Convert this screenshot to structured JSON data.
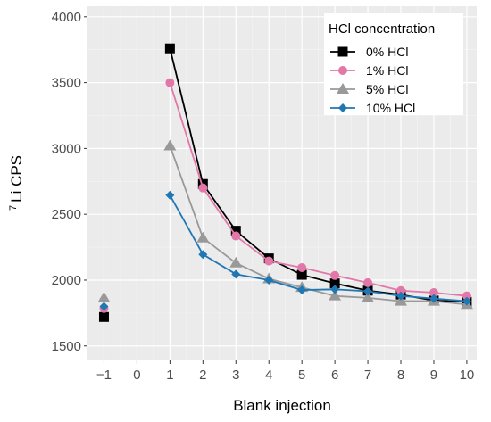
{
  "chart_data": {
    "type": "line",
    "xlabel": "Blank injection",
    "ylabel_superscript": "7",
    "ylabel": "Li CPS",
    "xlim": [
      -1.5,
      10.3
    ],
    "ylim": [
      1390,
      4080
    ],
    "x_ticks": [
      -1,
      0,
      1,
      2,
      3,
      4,
      5,
      6,
      7,
      8,
      9,
      10
    ],
    "x_tick_labels": [
      "−1",
      "0",
      "1",
      "2",
      "3",
      "4",
      "5",
      "6",
      "7",
      "8",
      "9",
      "10"
    ],
    "y_ticks": [
      1500,
      2000,
      2500,
      3000,
      3500,
      4000
    ],
    "y_tick_labels": [
      "1500",
      "2000",
      "2500",
      "3000",
      "3500",
      "4000"
    ],
    "grid": true,
    "legend": {
      "title": "HCl concentration",
      "placement": "top-right"
    },
    "series": [
      {
        "name": "0% HCl",
        "color": "#000000",
        "marker": "square",
        "points": [
          [
            -1,
            1720
          ]
        ],
        "line": [
          [
            1,
            3760
          ],
          [
            2,
            2730
          ],
          [
            3,
            2375
          ],
          [
            4,
            2165
          ],
          [
            5,
            2040
          ],
          [
            6,
            1975
          ],
          [
            7,
            1920
          ],
          [
            8,
            1890
          ],
          [
            9,
            1845
          ],
          [
            10,
            1835
          ]
        ]
      },
      {
        "name": "1% HCl",
        "color": "#e377a8",
        "marker": "circle",
        "points": [
          [
            -1,
            1785
          ]
        ],
        "line": [
          [
            1,
            3500
          ],
          [
            2,
            2700
          ],
          [
            3,
            2335
          ],
          [
            4,
            2145
          ],
          [
            5,
            2095
          ],
          [
            6,
            2035
          ],
          [
            7,
            1980
          ],
          [
            8,
            1920
          ],
          [
            9,
            1905
          ],
          [
            10,
            1880
          ]
        ]
      },
      {
        "name": "5% HCl",
        "color": "#999999",
        "marker": "triangle",
        "points": [
          [
            -1,
            1865
          ]
        ],
        "line": [
          [
            1,
            3020
          ],
          [
            2,
            2320
          ],
          [
            3,
            2130
          ],
          [
            4,
            2010
          ],
          [
            5,
            1945
          ],
          [
            6,
            1880
          ],
          [
            7,
            1865
          ],
          [
            8,
            1840
          ],
          [
            9,
            1840
          ],
          [
            10,
            1815
          ]
        ]
      },
      {
        "name": "10% HCl",
        "color": "#1f77b4",
        "marker": "diamond",
        "points": [
          [
            -1,
            1800
          ]
        ],
        "line": [
          [
            1,
            2645
          ],
          [
            2,
            2195
          ],
          [
            3,
            2045
          ],
          [
            4,
            2000
          ],
          [
            5,
            1925
          ],
          [
            6,
            1930
          ],
          [
            7,
            1915
          ],
          [
            8,
            1880
          ],
          [
            9,
            1860
          ],
          [
            10,
            1840
          ]
        ]
      }
    ]
  }
}
